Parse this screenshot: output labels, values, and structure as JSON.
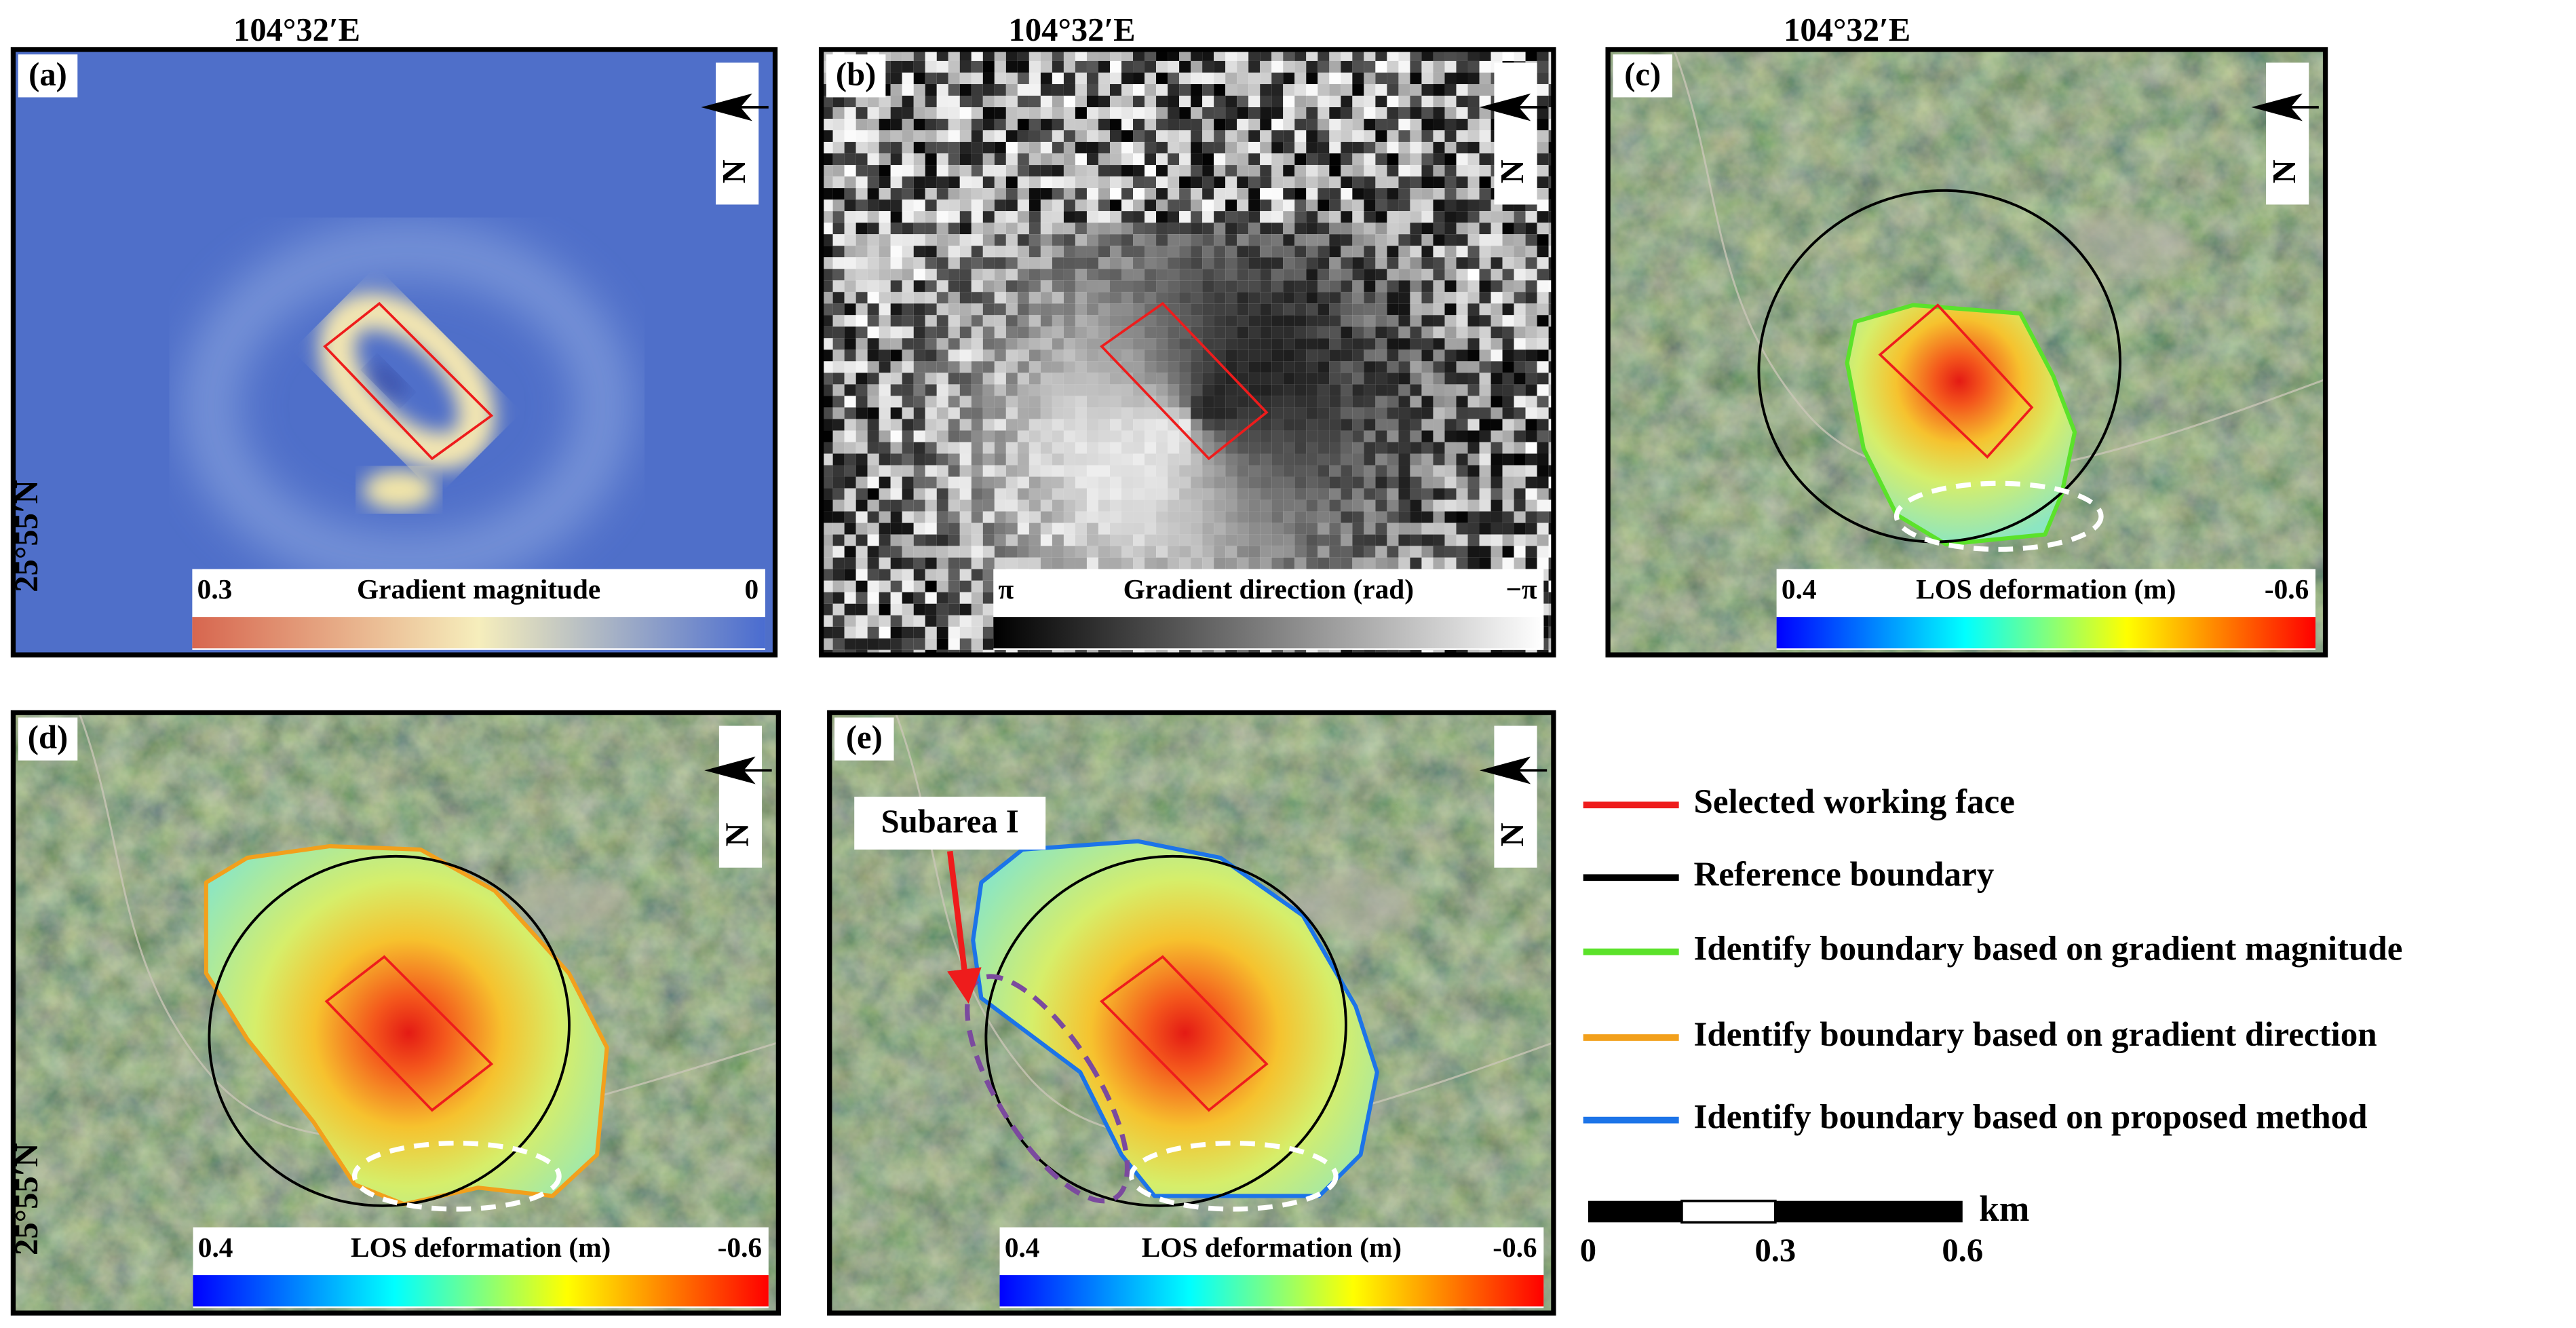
{
  "panels": [
    {
      "label": "(a)",
      "colorbar": {
        "left": 0.3,
        "title": "Gradient magnitude",
        "right": 0
      }
    },
    {
      "label": "(b)",
      "colorbar": {
        "left": "π",
        "title": "Gradient direction (rad)",
        "right": "−π"
      }
    },
    {
      "label": "(c)",
      "colorbar": {
        "left": 0.4,
        "title": "LOS deformation (m)",
        "right": -0.6
      }
    },
    {
      "label": "(d)",
      "colorbar": {
        "left": 0.4,
        "title": "LOS deformation (m)",
        "right": -0.6
      }
    },
    {
      "label": "(e)",
      "colorbar": {
        "left": 0.4,
        "title": "LOS deformation (m)",
        "right": -0.6
      }
    }
  ],
  "north": "N",
  "longitude_label": "104°32′E",
  "latitude_label": "25°55′N",
  "annotation": "Subarea I",
  "legend": [
    {
      "label": "Selected working face",
      "color": "#ee1c1c"
    },
    {
      "label": "Reference boundary",
      "color": "#000000"
    },
    {
      "label": "Identify boundary based on gradient magnitude",
      "color": "#5be22a"
    },
    {
      "label": "Identify boundary based on gradient direction",
      "color": "#f2a01c"
    },
    {
      "label": "Identify boundary based on proposed method",
      "color": "#1c74e8"
    }
  ],
  "scale_bar": {
    "ticks": [
      0,
      0.3,
      0.6
    ],
    "unit": "km"
  }
}
